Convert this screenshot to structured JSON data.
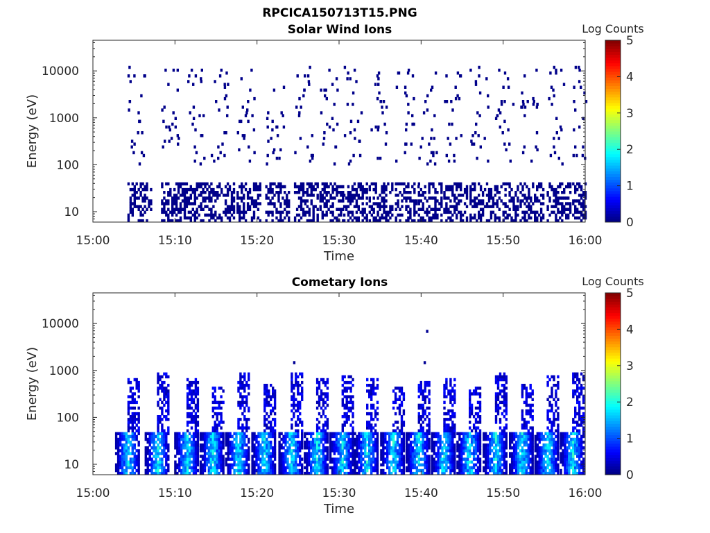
{
  "figure_title": "RPCICA150713T15.PNG",
  "chart_data": [
    {
      "type": "heatmap",
      "title": "Solar Wind Ions",
      "xlabel": "Time",
      "ylabel": "Energy (eV)",
      "x_ticks": [
        "15:00",
        "15:10",
        "15:20",
        "15:30",
        "15:40",
        "15:50",
        "16:00"
      ],
      "x_range": [
        "15:00",
        "16:00"
      ],
      "y_scale": "log",
      "y_ticks": [
        10,
        100,
        1000,
        10000
      ],
      "y_tick_labels": [
        "10",
        "100",
        "1000",
        "10000"
      ],
      "y_range": [
        6,
        45000
      ],
      "colorbar_label": "Log Counts",
      "colorbar_ticks": [
        "0",
        "1",
        "2",
        "3",
        "4",
        "5"
      ],
      "colorbar_range": [
        0,
        5
      ],
      "colormap": "jet",
      "grid": false,
      "sweep_start_minutes": [
        4.2,
        8.3,
        11.3,
        14.3,
        17.5,
        21.0,
        24.5,
        27.6,
        30.5,
        33.6,
        36.8,
        39.6,
        42.7,
        45.9,
        48.9,
        52.0,
        55.3,
        58.4
      ],
      "low_energy_band_eV": [
        6,
        40
      ],
      "high_energy_scatter_eV": [
        100,
        30000
      ],
      "log_count_level": 0
    },
    {
      "type": "heatmap",
      "title": "Cometary Ions",
      "xlabel": "Time",
      "ylabel": "Energy (eV)",
      "x_ticks": [
        "15:00",
        "15:10",
        "15:20",
        "15:30",
        "15:40",
        "15:50",
        "16:00"
      ],
      "x_range": [
        "15:00",
        "16:00"
      ],
      "y_scale": "log",
      "y_ticks": [
        10,
        100,
        1000,
        10000
      ],
      "y_tick_labels": [
        "10",
        "100",
        "1000",
        "10000"
      ],
      "y_range": [
        6,
        45000
      ],
      "colorbar_label": "Log Counts",
      "colorbar_ticks": [
        "0",
        "1",
        "2",
        "3",
        "4",
        "5"
      ],
      "colorbar_range": [
        0,
        5
      ],
      "colormap": "jet",
      "grid": false,
      "sweep_start_minutes": [
        2.7,
        6.3,
        9.9,
        13.0,
        16.1,
        19.3,
        22.6,
        25.7,
        28.8,
        31.8,
        35.0,
        38.1,
        41.2,
        44.3,
        47.5,
        50.7,
        53.8,
        56.9
      ],
      "dense_band_eV": [
        6,
        45
      ],
      "peak_log_counts": 2.0,
      "spike_top_eV": [
        350,
        900
      ],
      "isolated_points": [
        {
          "minute": 24.4,
          "energy_eV": 1500
        },
        {
          "minute": 40.6,
          "energy_eV": 7000
        },
        {
          "minute": 40.3,
          "energy_eV": 1400
        }
      ]
    }
  ]
}
